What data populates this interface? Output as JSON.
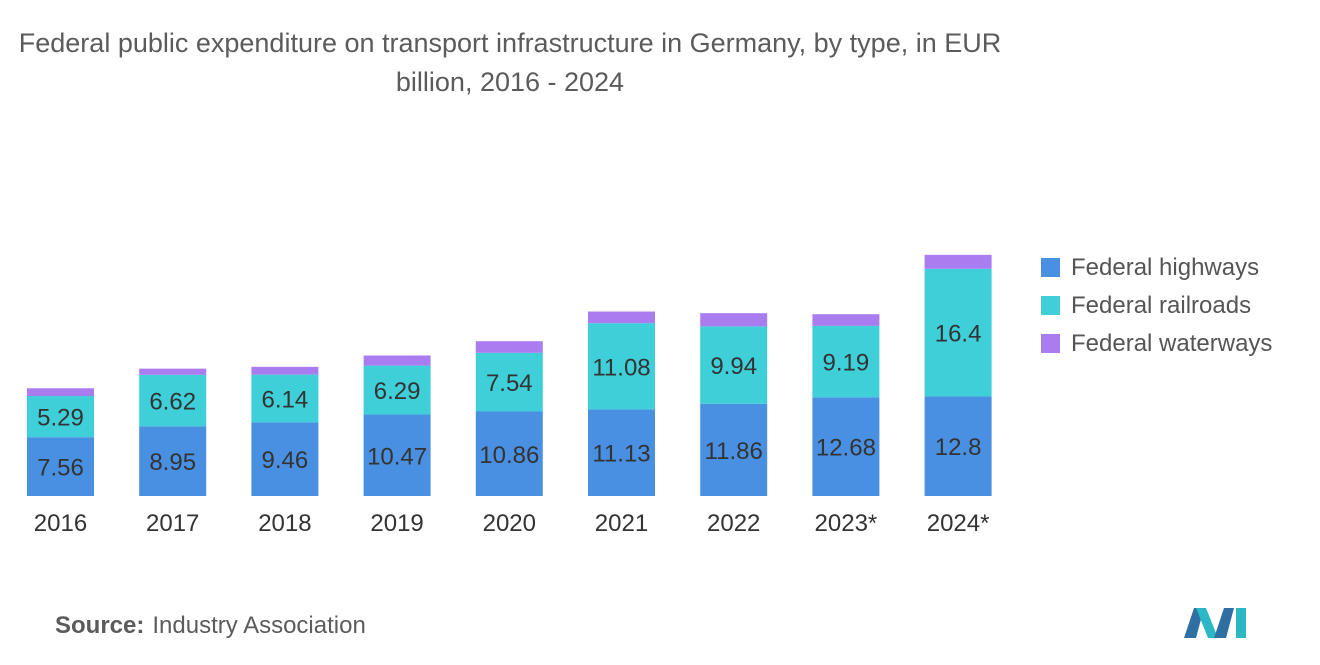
{
  "chart_data": {
    "type": "bar",
    "stacked": true,
    "title": "Federal public expenditure on transport infrastructure in Germany, by type, in EUR billion, 2016 - 2024",
    "categories": [
      "2016",
      "2017",
      "2018",
      "2019",
      "2020",
      "2021",
      "2022",
      "2023*",
      "2024*"
    ],
    "series": [
      {
        "name": "Federal highways",
        "color": "#4a90e2",
        "values": [
          7.56,
          8.95,
          9.46,
          10.47,
          10.86,
          11.13,
          11.86,
          12.68,
          12.8
        ],
        "labels": [
          "7.56",
          "8.95",
          "9.46",
          "10.47",
          "10.86",
          "11.13",
          "11.86",
          "12.68",
          "12.8"
        ]
      },
      {
        "name": "Federal railroads",
        "color": "#3ecfd8",
        "values": [
          5.29,
          6.62,
          6.14,
          6.29,
          7.54,
          11.08,
          9.94,
          9.19,
          16.4
        ],
        "labels": [
          "5.29",
          "6.62",
          "6.14",
          "6.29",
          "7.54",
          "11.08",
          "9.94",
          "9.19",
          "16.4"
        ]
      },
      {
        "name": "Federal waterways",
        "color": "#a97cf0",
        "values": [
          1.0,
          0.8,
          1.0,
          1.3,
          1.5,
          1.5,
          1.7,
          1.5,
          1.8
        ],
        "labels": [
          "",
          "",
          "",
          "",
          "",
          "",
          "",
          "",
          ""
        ]
      }
    ],
    "xlabel": "",
    "ylabel": "",
    "ylim": [
      0,
      32
    ],
    "grid": false,
    "legend": "right"
  },
  "source": {
    "label": "Source:",
    "text": "Industry Association"
  }
}
